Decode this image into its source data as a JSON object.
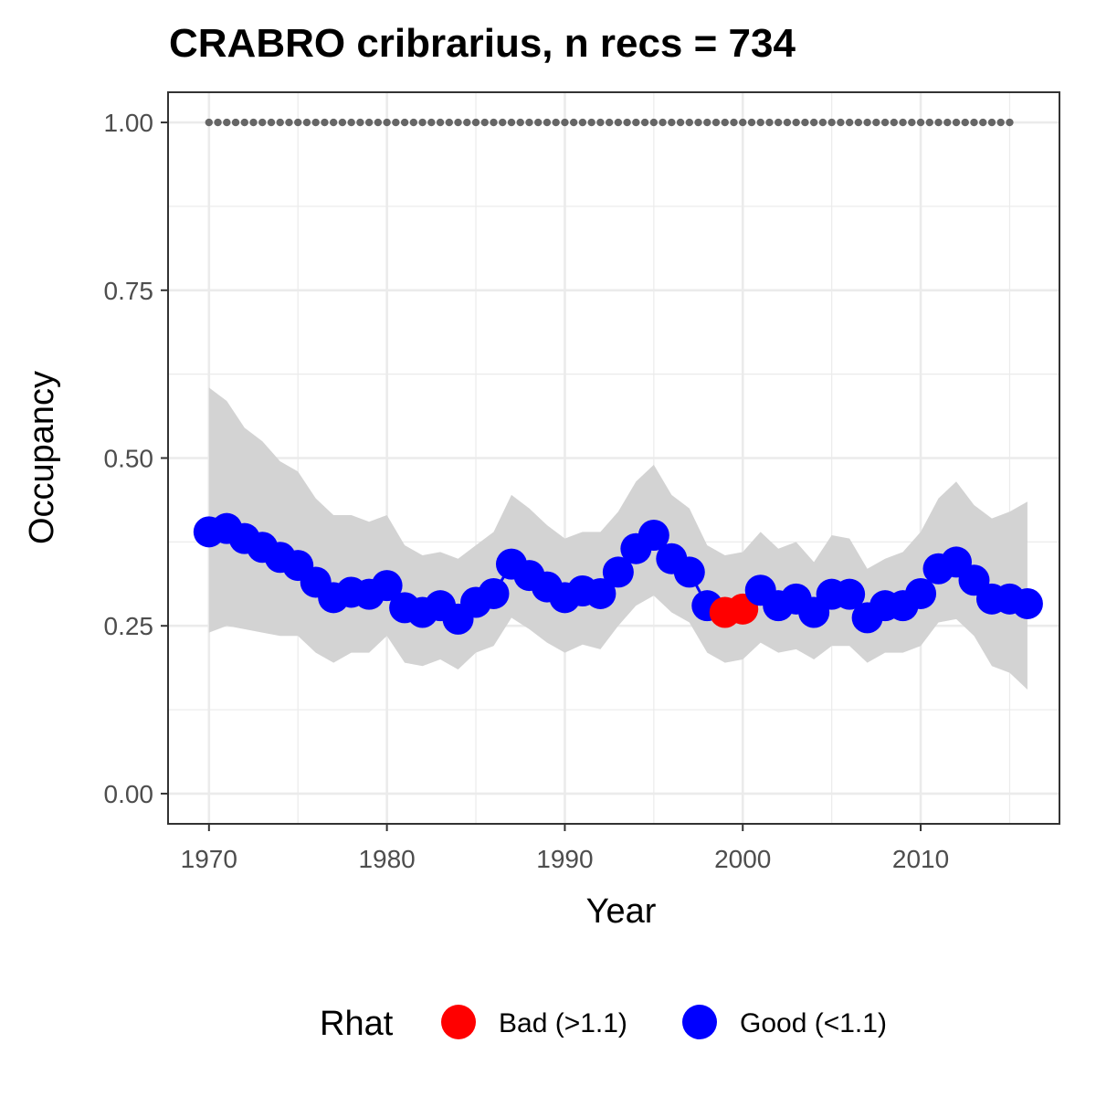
{
  "chart_data": {
    "type": "line",
    "title": "CRABRO cribrarius, n recs = 734",
    "xlabel": "Year",
    "ylabel": "Occupancy",
    "xlim": [
      1967.7,
      2017.8
    ],
    "ylim": [
      -0.045,
      1.045
    ],
    "x_ticks": [
      1970,
      1980,
      1990,
      2000,
      2010
    ],
    "x_tick_labels": [
      "1970",
      "1980",
      "1990",
      "2000",
      "2010"
    ],
    "y_ticks": [
      0,
      0.25,
      0.5,
      0.75,
      1.0
    ],
    "y_tick_labels": [
      "0.00",
      "0.25",
      "0.50",
      "0.75",
      "1.00"
    ],
    "grid": true,
    "reference_line": {
      "y": 1.0,
      "x_start": 1970,
      "x_end": 2015,
      "style": "dotted",
      "color": "#666666"
    },
    "x": [
      1970,
      1971,
      1972,
      1973,
      1974,
      1975,
      1976,
      1977,
      1978,
      1979,
      1980,
      1981,
      1982,
      1983,
      1984,
      1985,
      1986,
      1987,
      1988,
      1989,
      1990,
      1991,
      1992,
      1993,
      1994,
      1995,
      1996,
      1997,
      1998,
      1999,
      2000,
      2001,
      2002,
      2003,
      2004,
      2005,
      2006,
      2007,
      2008,
      2009,
      2010,
      2011,
      2012,
      2013,
      2014,
      2015,
      2016
    ],
    "series": [
      {
        "values": [
          0.39,
          0.395,
          0.38,
          0.367,
          0.352,
          0.34,
          0.315,
          0.292,
          0.3,
          0.297,
          0.31,
          0.277,
          0.27,
          0.28,
          0.26,
          0.285,
          0.298,
          0.342,
          0.325,
          0.308,
          0.292,
          0.302,
          0.298,
          0.33,
          0.365,
          0.385,
          0.35,
          0.33,
          0.28,
          0.27,
          0.275,
          0.303,
          0.28,
          0.29,
          0.27,
          0.297,
          0.297,
          0.262,
          0.28,
          0.28,
          0.298,
          0.335,
          0.345,
          0.318,
          0.29,
          0.29,
          0.283
        ],
        "lower": [
          0.24,
          0.25,
          0.245,
          0.24,
          0.235,
          0.235,
          0.21,
          0.195,
          0.21,
          0.21,
          0.235,
          0.195,
          0.19,
          0.2,
          0.185,
          0.21,
          0.22,
          0.262,
          0.245,
          0.225,
          0.21,
          0.222,
          0.215,
          0.25,
          0.28,
          0.295,
          0.27,
          0.255,
          0.21,
          0.195,
          0.2,
          0.225,
          0.21,
          0.215,
          0.2,
          0.22,
          0.22,
          0.195,
          0.21,
          0.21,
          0.22,
          0.255,
          0.26,
          0.235,
          0.19,
          0.18,
          0.155
        ],
        "upper": [
          0.605,
          0.585,
          0.545,
          0.525,
          0.495,
          0.48,
          0.44,
          0.415,
          0.415,
          0.405,
          0.415,
          0.37,
          0.355,
          0.36,
          0.35,
          0.37,
          0.39,
          0.445,
          0.425,
          0.4,
          0.38,
          0.39,
          0.39,
          0.42,
          0.465,
          0.49,
          0.445,
          0.425,
          0.37,
          0.355,
          0.36,
          0.39,
          0.365,
          0.375,
          0.345,
          0.385,
          0.38,
          0.335,
          0.35,
          0.36,
          0.39,
          0.44,
          0.465,
          0.43,
          0.41,
          0.42,
          0.435
        ],
        "rhat": [
          "Good",
          "Good",
          "Good",
          "Good",
          "Good",
          "Good",
          "Good",
          "Good",
          "Good",
          "Good",
          "Good",
          "Good",
          "Good",
          "Good",
          "Good",
          "Good",
          "Good",
          "Good",
          "Good",
          "Good",
          "Good",
          "Good",
          "Good",
          "Good",
          "Good",
          "Good",
          "Good",
          "Good",
          "Good",
          "Bad",
          "Bad",
          "Good",
          "Good",
          "Good",
          "Good",
          "Good",
          "Good",
          "Good",
          "Good",
          "Good",
          "Good",
          "Good",
          "Good",
          "Good",
          "Good",
          "Good",
          "Good"
        ],
        "line_color": "#0000ff"
      }
    ],
    "ribbon_color": "#d3d3d3",
    "legend": {
      "title": "Rhat",
      "position": "bottom",
      "entries": [
        {
          "key": "Bad",
          "label": "Bad (>1.1)",
          "color": "#ff0000"
        },
        {
          "key": "Good",
          "label": "Good (<1.1)",
          "color": "#0000ff"
        }
      ]
    }
  }
}
